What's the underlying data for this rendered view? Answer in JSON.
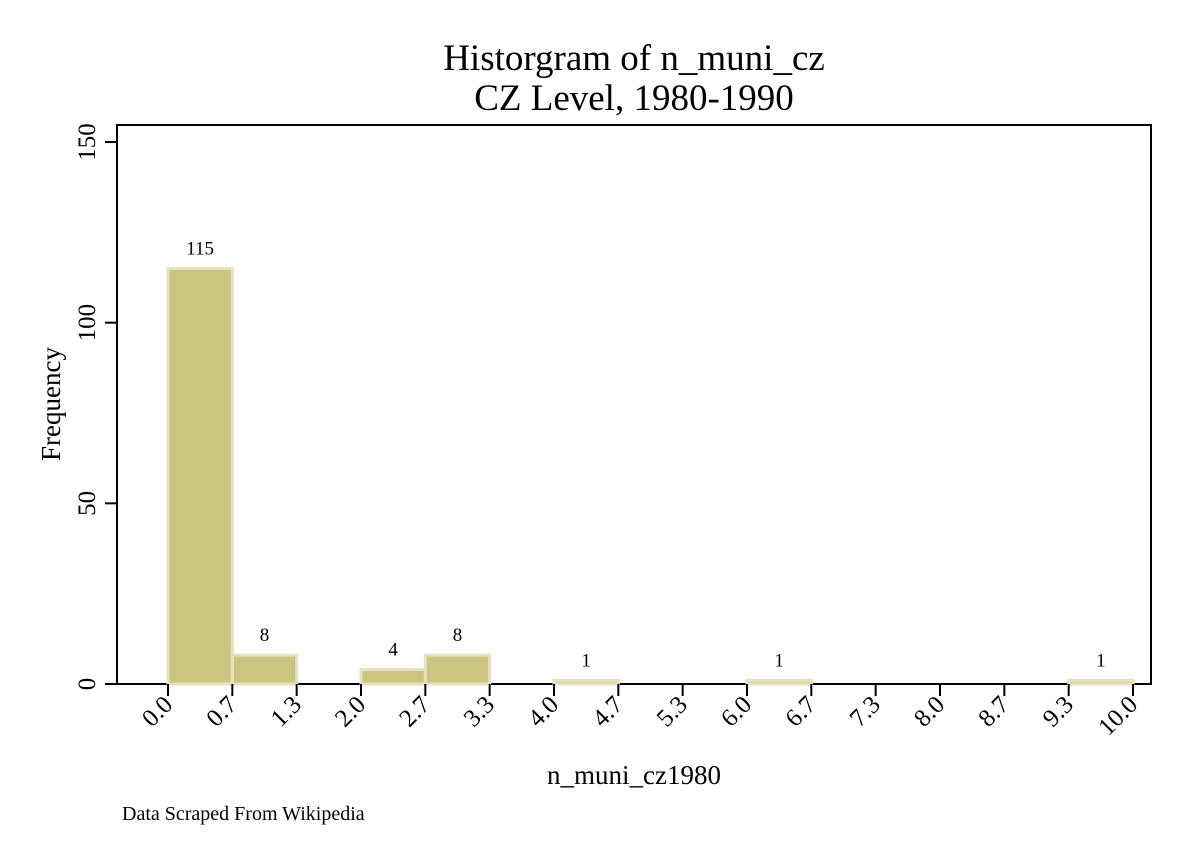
{
  "chart_data": {
    "type": "bar",
    "title": "Historgram of n_muni_cz",
    "subtitle": "CZ Level, 1980-1990",
    "xlabel": "n_muni_cz1980",
    "ylabel": "Frequency",
    "note": "Data Scraped From Wikipedia",
    "xlim": [
      0,
      10
    ],
    "ylim": [
      0,
      150
    ],
    "x_ticks": [
      "0.0",
      "0.7",
      "1.3",
      "2.0",
      "2.7",
      "3.3",
      "4.0",
      "4.7",
      "5.3",
      "6.0",
      "6.7",
      "7.3",
      "8.0",
      "8.7",
      "9.3",
      "10.0"
    ],
    "y_ticks": [
      0,
      50,
      100,
      150
    ],
    "bin_width": 0.6667,
    "bins": [
      {
        "start": 0.0,
        "value": 115
      },
      {
        "start": 0.6667,
        "value": 8
      },
      {
        "start": 2.0,
        "value": 4
      },
      {
        "start": 2.6667,
        "value": 8
      },
      {
        "start": 4.0,
        "value": 1
      },
      {
        "start": 6.0,
        "value": 1
      },
      {
        "start": 9.3333,
        "value": 1
      }
    ],
    "grid": false,
    "legend": "none",
    "bar_color": "#ccc581",
    "bar_edge_color": "#e6e2bf"
  }
}
